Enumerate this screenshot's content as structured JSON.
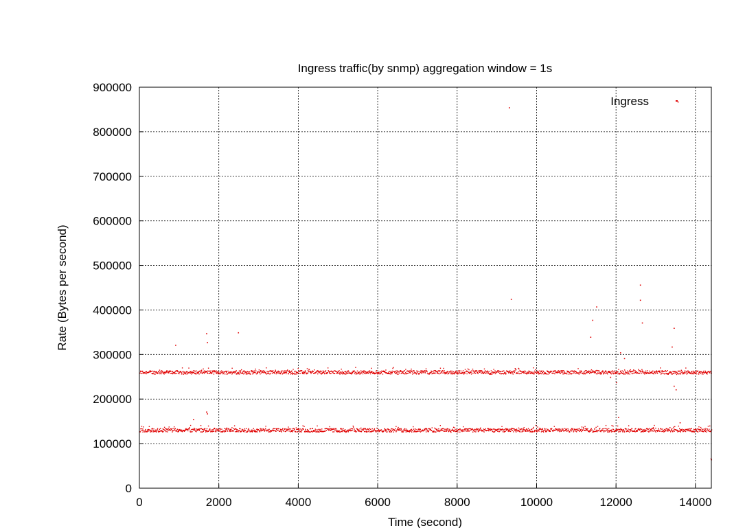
{
  "chart_data": {
    "type": "scatter",
    "title": "Ingress traffic(by snmp) aggregation window = 1s",
    "xlabel": "Time (second)",
    "ylabel": "Rate (Bytes per second)",
    "xlim": [
      0,
      14400
    ],
    "ylim": [
      0,
      900000
    ],
    "xticks": [
      0,
      2000,
      4000,
      6000,
      8000,
      10000,
      12000,
      14000
    ],
    "yticks": [
      0,
      100000,
      200000,
      300000,
      400000,
      500000,
      600000,
      700000,
      800000,
      900000
    ],
    "grid": true,
    "legend_position": "top-right",
    "series": [
      {
        "name": "Ingress",
        "color": "#e00000",
        "bands": [
          {
            "x_range": [
              0,
              14400
            ],
            "y_center": 261000,
            "y_spread": 4000
          },
          {
            "x_range": [
              0,
              14400
            ],
            "y_center": 131000,
            "y_spread": 4000
          }
        ],
        "outliers": [
          {
            "x": 9300,
            "y": 855000
          },
          {
            "x": 13550,
            "y": 868000
          },
          {
            "x": 9350,
            "y": 425000
          },
          {
            "x": 12600,
            "y": 457000
          },
          {
            "x": 12600,
            "y": 423000
          },
          {
            "x": 11500,
            "y": 408000
          },
          {
            "x": 11400,
            "y": 378000
          },
          {
            "x": 12650,
            "y": 372000
          },
          {
            "x": 13450,
            "y": 360000
          },
          {
            "x": 1680,
            "y": 348000
          },
          {
            "x": 2480,
            "y": 350000
          },
          {
            "x": 1700,
            "y": 328000
          },
          {
            "x": 900,
            "y": 322000
          },
          {
            "x": 11350,
            "y": 340000
          },
          {
            "x": 13400,
            "y": 318000
          },
          {
            "x": 12100,
            "y": 305000
          },
          {
            "x": 12200,
            "y": 292000
          },
          {
            "x": 12000,
            "y": 238000
          },
          {
            "x": 13450,
            "y": 230000
          },
          {
            "x": 1680,
            "y": 172000
          },
          {
            "x": 1700,
            "y": 168000
          },
          {
            "x": 1350,
            "y": 155000
          },
          {
            "x": 13600,
            "y": 148000
          },
          {
            "x": 12050,
            "y": 160000
          },
          {
            "x": 14380,
            "y": 67000
          },
          {
            "x": 14390,
            "y": 65000
          },
          {
            "x": 13500,
            "y": 222000
          },
          {
            "x": 11850,
            "y": 250000
          }
        ]
      }
    ]
  }
}
